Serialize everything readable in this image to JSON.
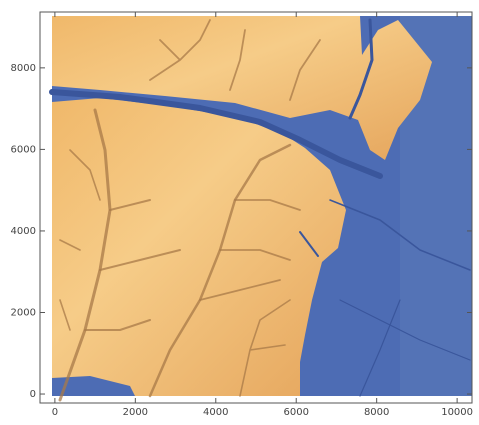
{
  "chart_data": {
    "type": "image",
    "xlim": [
      -370,
      10370
    ],
    "ylim": [
      -220,
      9370
    ],
    "xticks": [
      0,
      2000,
      4000,
      6000,
      8000,
      10000
    ],
    "yticks": [
      0,
      2000,
      4000,
      6000,
      8000
    ]
  }
}
